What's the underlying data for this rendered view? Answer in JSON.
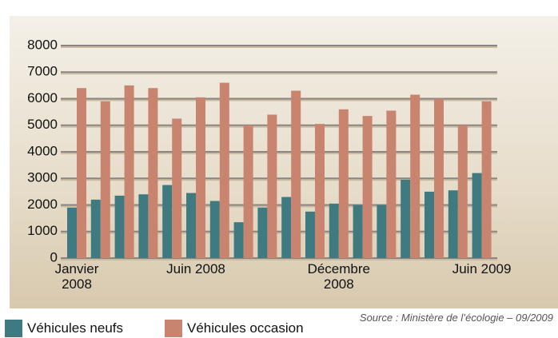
{
  "chart_data": {
    "type": "bar",
    "categories": [
      "Janvier 2008",
      null,
      null,
      null,
      null,
      "Juin 2008",
      null,
      null,
      null,
      null,
      null,
      "Décembre 2008",
      null,
      null,
      null,
      null,
      null,
      "Juin 2009"
    ],
    "series": [
      {
        "name": "Véhicules neufs",
        "color": "#3e7a80",
        "values": [
          1900,
          2200,
          2350,
          2400,
          2750,
          2450,
          2150,
          1350,
          1900,
          2300,
          1750,
          2050,
          2000,
          2000,
          2950,
          2500,
          2550,
          3200
        ]
      },
      {
        "name": "Véhicules occasion",
        "color": "#c98470",
        "values": [
          6400,
          5900,
          6500,
          6400,
          5250,
          6050,
          6600,
          5000,
          5400,
          6300,
          5050,
          5600,
          5350,
          5550,
          6150,
          6000,
          5000,
          5900
        ]
      }
    ],
    "ylim": [
      0,
      8000
    ],
    "yticks": [
      0,
      1000,
      2000,
      3000,
      4000,
      5000,
      6000,
      7000,
      8000
    ],
    "grid": true,
    "source": "Source  : Ministère de l’écologie – 09/2009"
  }
}
